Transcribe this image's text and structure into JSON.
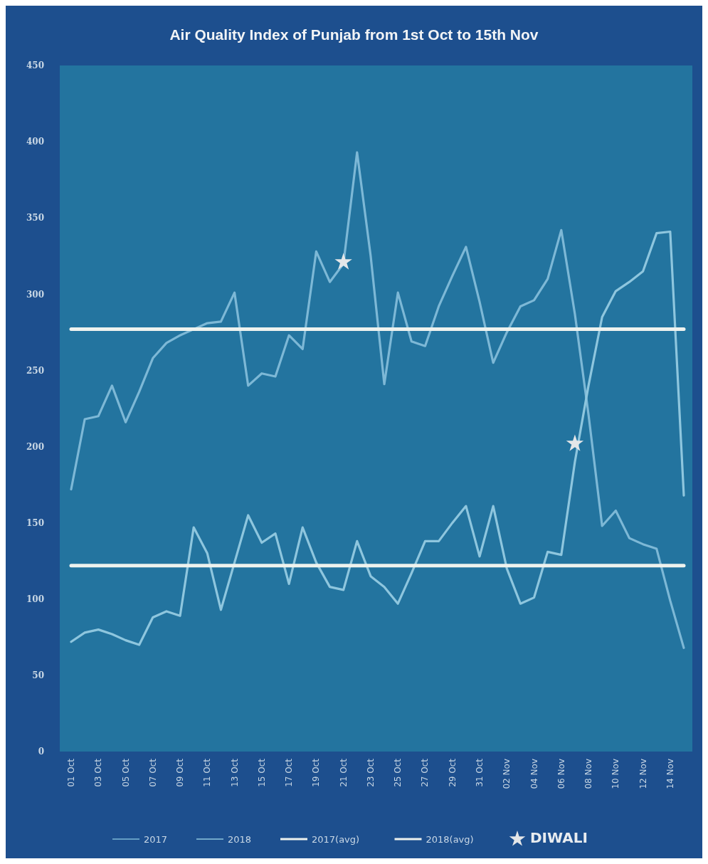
{
  "chart_data": {
    "type": "line",
    "title": "Air Quality Index of Punjab from 1st Oct to 15th Nov",
    "categories": [
      "01 Oct",
      null,
      "03 Oct",
      null,
      "05 Oct",
      null,
      "07 Oct",
      null,
      "09 Oct",
      null,
      "11 Oct",
      null,
      "13 Oct",
      null,
      "15 Oct",
      null,
      "17 Oct",
      null,
      "19 Oct",
      null,
      "21 Oct",
      null,
      "23 Oct",
      null,
      "25 Oct",
      null,
      "27 Oct",
      null,
      "29 Oct",
      null,
      "31 Oct",
      null,
      "02 Nov",
      null,
      "04 Nov",
      null,
      "06 Nov",
      null,
      "08 Nov",
      null,
      "10 Nov",
      null,
      "12 Nov",
      null,
      "14 Nov",
      null
    ],
    "ylim": [
      0,
      450
    ],
    "yticks": [
      0,
      50,
      100,
      150,
      200,
      250,
      300,
      350,
      400,
      450
    ],
    "grid": false,
    "legend": "bottom",
    "series": [
      {
        "name": "2017",
        "color": "#7db8d6",
        "values": [
          172,
          218,
          220,
          240,
          216,
          236,
          258,
          268,
          273,
          277,
          281,
          282,
          301,
          240,
          248,
          246,
          273,
          264,
          328,
          308,
          320,
          393,
          325,
          241,
          301,
          269,
          266,
          292,
          312,
          331,
          295,
          255,
          275,
          292,
          296,
          310,
          342,
          287,
          221,
          148,
          158,
          140,
          136,
          133,
          99,
          68
        ]
      },
      {
        "name": "2018",
        "color": "#8ec6de",
        "values": [
          72,
          78,
          80,
          77,
          73,
          70,
          88,
          92,
          89,
          147,
          130,
          93,
          124,
          155,
          137,
          143,
          110,
          147,
          124,
          108,
          106,
          138,
          115,
          108,
          97,
          117,
          138,
          138,
          150,
          161,
          128,
          161,
          120,
          97,
          101,
          131,
          129,
          190,
          240,
          285,
          302,
          308,
          315,
          340,
          341,
          168
        ]
      },
      {
        "name": "2017(avg)",
        "color": "#eef2ee",
        "values": [
          277,
          277,
          277,
          277,
          277,
          277,
          277,
          277,
          277,
          277,
          277,
          277,
          277,
          277,
          277,
          277,
          277,
          277,
          277,
          277,
          277,
          277,
          277,
          277,
          277,
          277,
          277,
          277,
          277,
          277,
          277,
          277,
          277,
          277,
          277,
          277,
          277,
          277,
          277,
          277,
          277,
          277,
          277,
          277,
          277,
          277
        ]
      },
      {
        "name": "2018(avg)",
        "color": "#eef2ee",
        "values": [
          122,
          122,
          122,
          122,
          122,
          122,
          122,
          122,
          122,
          122,
          122,
          122,
          122,
          122,
          122,
          122,
          122,
          122,
          122,
          122,
          122,
          122,
          122,
          122,
          122,
          122,
          122,
          122,
          122,
          122,
          122,
          122,
          122,
          122,
          122,
          122,
          122,
          122,
          122,
          122,
          122,
          122,
          122,
          122,
          122,
          122
        ]
      },
      {
        "name": "DIWALI",
        "type": "scatter",
        "marker": "star",
        "color": "#e4e6e8",
        "values": [
          null,
          null,
          null,
          null,
          null,
          null,
          null,
          null,
          null,
          null,
          null,
          null,
          null,
          null,
          null,
          null,
          null,
          null,
          null,
          null,
          321,
          null,
          null,
          null,
          null,
          null,
          null,
          null,
          null,
          null,
          null,
          null,
          null,
          null,
          null,
          null,
          null,
          202,
          null,
          null,
          null,
          null,
          null,
          null,
          null,
          null
        ]
      }
    ]
  }
}
